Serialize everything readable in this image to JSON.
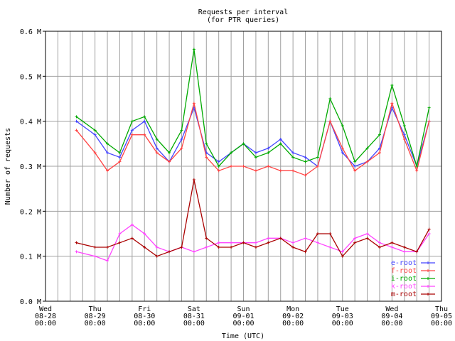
{
  "chart_data": {
    "type": "line",
    "title": "Requests per interval",
    "subtitle": "(for PTR queries)",
    "xlabel": "Time (UTC)",
    "ylabel": "Number of requests",
    "ylim": [
      0,
      0.6
    ],
    "y_unit": "M",
    "yticks": [
      "0.0 M",
      "0.1 M",
      "0.2 M",
      "0.3 M",
      "0.4 M",
      "0.5 M",
      "0.6 M"
    ],
    "xlim": [
      "08-28 00:00",
      "09-05 00:00"
    ],
    "xticks": [
      {
        "day": "Wed",
        "date": "08-28",
        "time": "00:00"
      },
      {
        "day": "Thu",
        "date": "08-29",
        "time": "00:00"
      },
      {
        "day": "Fri",
        "date": "08-30",
        "time": "00:00"
      },
      {
        "day": "Sat",
        "date": "08-31",
        "time": "00:00"
      },
      {
        "day": "Sun",
        "date": "09-01",
        "time": "00:00"
      },
      {
        "day": "Mon",
        "date": "09-02",
        "time": "00:00"
      },
      {
        "day": "Tue",
        "date": "09-03",
        "time": "00:00"
      },
      {
        "day": "Wed",
        "date": "09-04",
        "time": "00:00"
      },
      {
        "day": "Thu",
        "date": "09-05",
        "time": "00:00"
      }
    ],
    "grid": true,
    "legend_position": "bottom-right",
    "x": [
      "08-28 15:00",
      "08-29 00:00",
      "08-29 06:00",
      "08-29 12:00",
      "08-29 18:00",
      "08-30 00:00",
      "08-30 06:00",
      "08-30 12:00",
      "08-30 18:00",
      "08-31 00:00",
      "08-31 06:00",
      "08-31 12:00",
      "08-31 18:00",
      "09-01 00:00",
      "09-01 06:00",
      "09-01 12:00",
      "09-01 18:00",
      "09-02 00:00",
      "09-02 06:00",
      "09-02 12:00",
      "09-02 18:00",
      "09-03 00:00",
      "09-03 06:00",
      "09-03 12:00",
      "09-03 18:00",
      "09-04 00:00",
      "09-04 06:00",
      "09-04 12:00",
      "09-04 18:00"
    ],
    "series": [
      {
        "name": "e-root",
        "color": "#4444ff",
        "values": [
          0.4,
          0.37,
          0.33,
          0.32,
          0.38,
          0.4,
          0.34,
          0.31,
          0.36,
          0.43,
          0.33,
          0.31,
          0.33,
          0.35,
          0.33,
          0.34,
          0.36,
          0.33,
          0.32,
          0.3,
          0.4,
          0.33,
          0.3,
          0.31,
          0.34,
          0.43,
          0.37,
          0.3,
          0.4
        ]
      },
      {
        "name": "f-root",
        "color": "#ff4444",
        "values": [
          0.38,
          0.33,
          0.29,
          0.31,
          0.37,
          0.37,
          0.33,
          0.31,
          0.34,
          0.44,
          0.32,
          0.29,
          0.3,
          0.3,
          0.29,
          0.3,
          0.29,
          0.29,
          0.28,
          0.3,
          0.4,
          0.34,
          0.29,
          0.31,
          0.33,
          0.44,
          0.36,
          0.29,
          0.4
        ]
      },
      {
        "name": "i-root",
        "color": "#00aa00",
        "values": [
          0.41,
          0.38,
          0.35,
          0.33,
          0.4,
          0.41,
          0.36,
          0.33,
          0.38,
          0.56,
          0.35,
          0.3,
          0.33,
          0.35,
          0.32,
          0.33,
          0.35,
          0.32,
          0.31,
          0.32,
          0.45,
          0.39,
          0.31,
          0.34,
          0.37,
          0.48,
          0.39,
          0.3,
          0.43
        ]
      },
      {
        "name": "k-root",
        "color": "#ff44ff",
        "values": [
          0.11,
          0.1,
          0.09,
          0.15,
          0.17,
          0.15,
          0.12,
          0.11,
          0.12,
          0.11,
          0.12,
          0.13,
          0.13,
          0.13,
          0.13,
          0.14,
          0.14,
          0.13,
          0.14,
          0.13,
          0.12,
          0.11,
          0.14,
          0.15,
          0.13,
          0.12,
          0.11,
          0.11,
          0.15
        ]
      },
      {
        "name": "m-root",
        "color": "#aa0000",
        "values": [
          0.13,
          0.12,
          0.12,
          0.13,
          0.14,
          0.12,
          0.1,
          0.11,
          0.12,
          0.27,
          0.14,
          0.12,
          0.12,
          0.13,
          0.12,
          0.13,
          0.14,
          0.12,
          0.11,
          0.15,
          0.15,
          0.1,
          0.13,
          0.14,
          0.12,
          0.13,
          0.12,
          0.11,
          0.16
        ]
      }
    ]
  }
}
